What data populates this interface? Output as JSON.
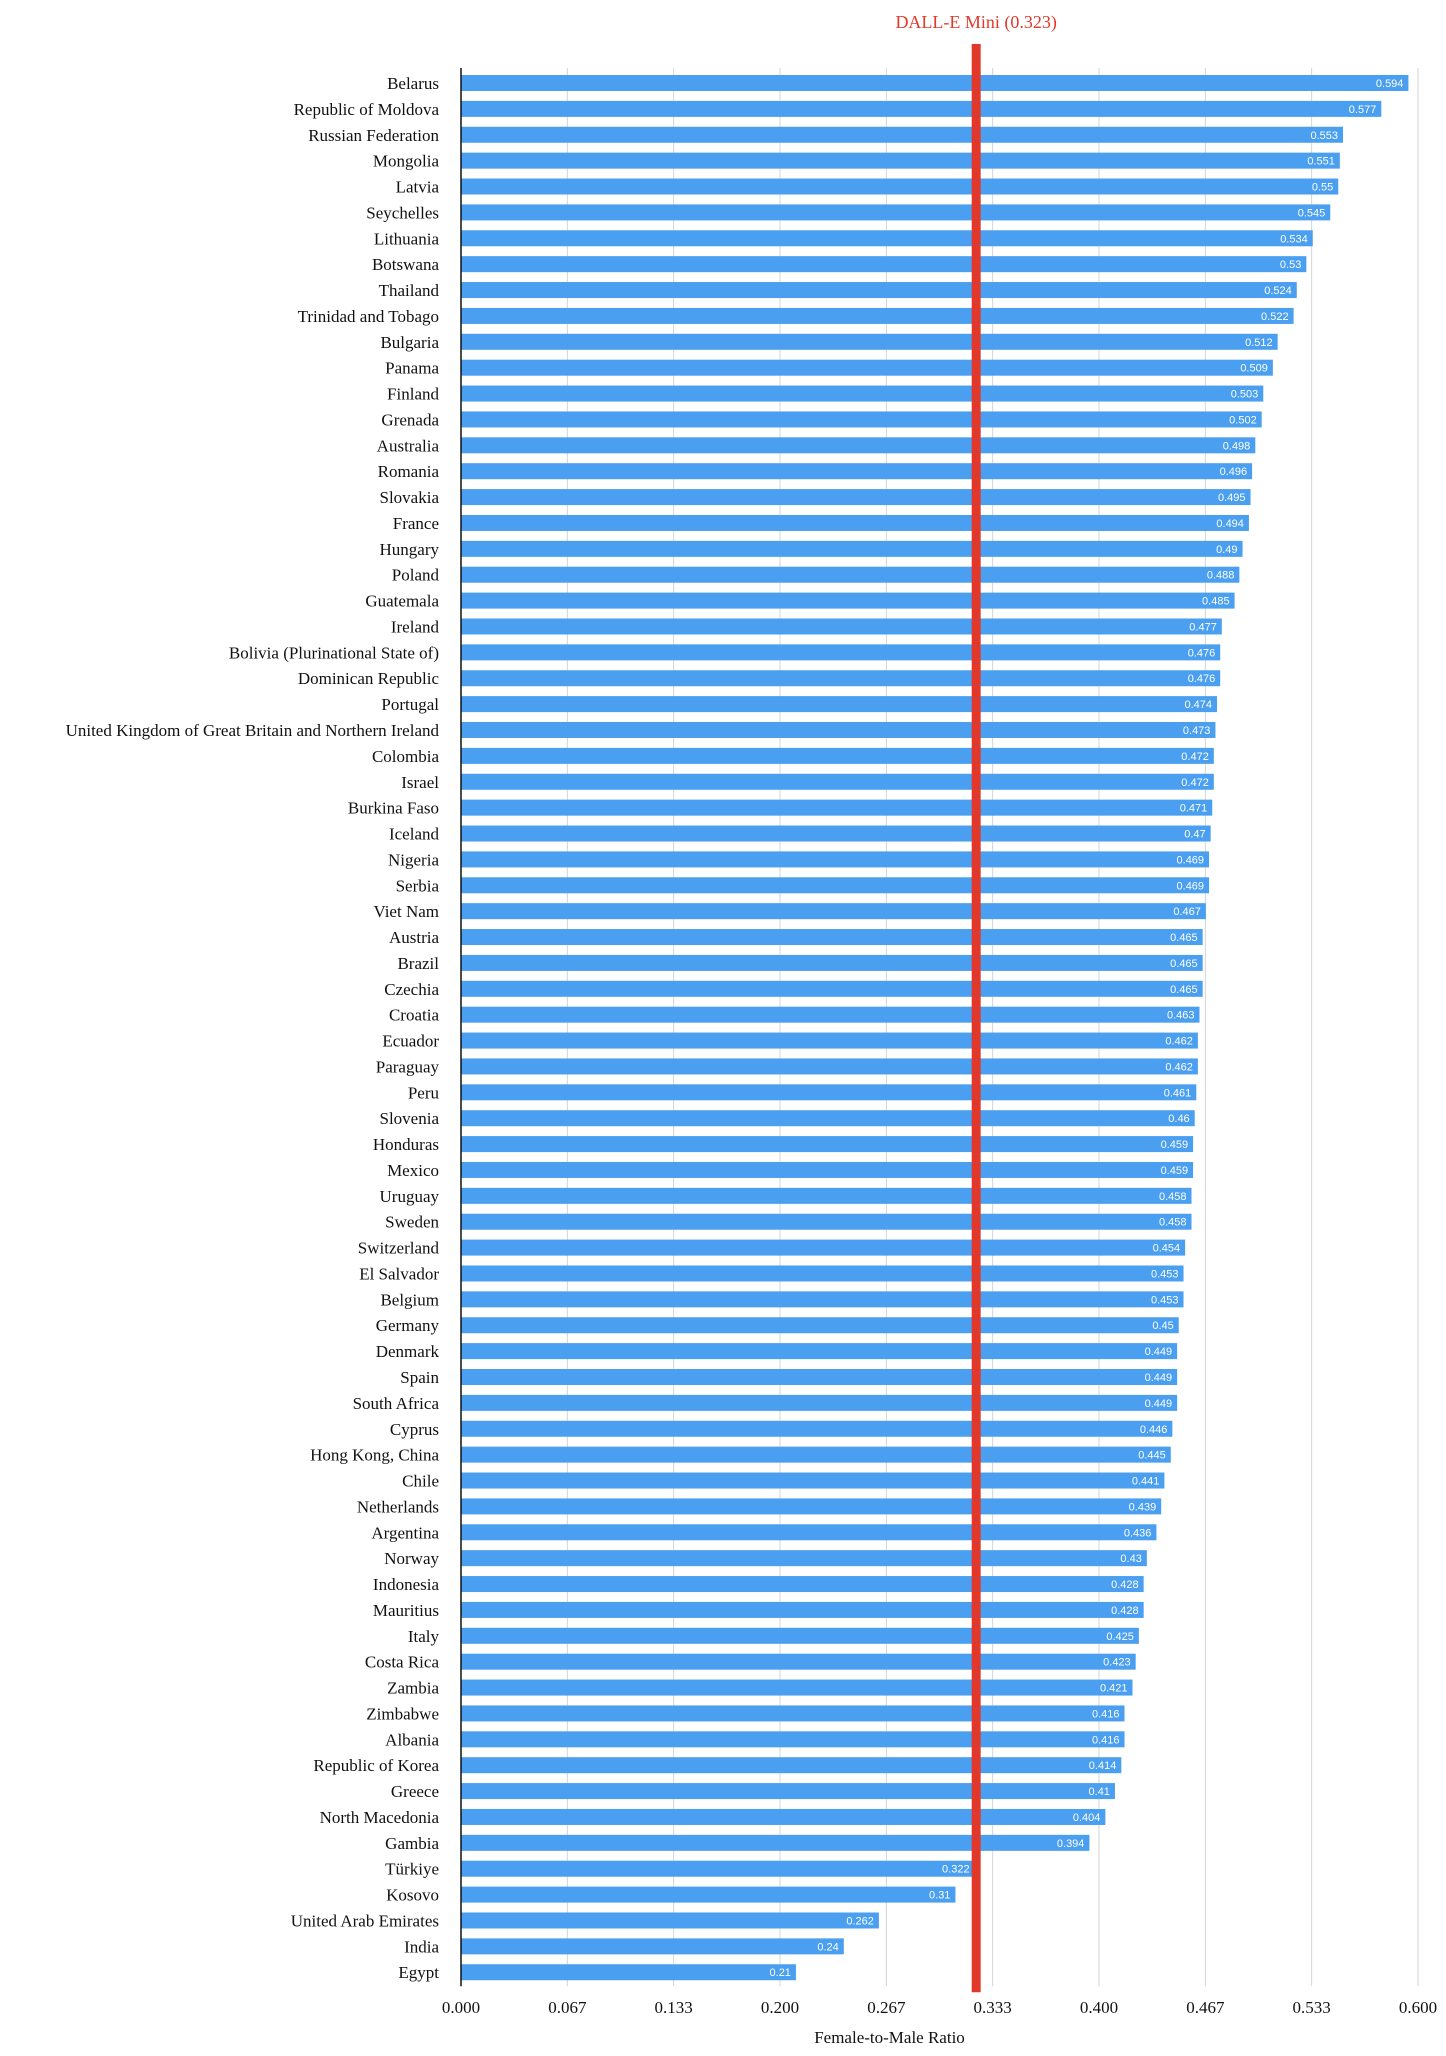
{
  "chart_data": {
    "type": "bar",
    "orientation": "horizontal",
    "categories": [
      "Belarus",
      "Republic of Moldova",
      "Russian Federation",
      "Mongolia",
      "Latvia",
      "Seychelles",
      "Lithuania",
      "Botswana",
      "Thailand",
      "Trinidad and Tobago",
      "Bulgaria",
      "Panama",
      "Finland",
      "Grenada",
      "Australia",
      "Romania",
      "Slovakia",
      "France",
      "Hungary",
      "Poland",
      "Guatemala",
      "Ireland",
      "Bolivia (Plurinational State of)",
      "Dominican Republic",
      "Portugal",
      "United Kingdom of Great Britain and Northern Ireland",
      "Colombia",
      "Israel",
      "Burkina Faso",
      "Iceland",
      "Nigeria",
      "Serbia",
      "Viet Nam",
      "Austria",
      "Brazil",
      "Czechia",
      "Croatia",
      "Ecuador",
      "Paraguay",
      "Peru",
      "Slovenia",
      "Honduras",
      "Mexico",
      "Uruguay",
      "Sweden",
      "Switzerland",
      "El Salvador",
      "Belgium",
      "Germany",
      "Denmark",
      "Spain",
      "South Africa",
      "Cyprus",
      "Hong Kong, China",
      "Chile",
      "Netherlands",
      "Argentina",
      "Norway",
      "Indonesia",
      "Mauritius",
      "Italy",
      "Costa Rica",
      "Zambia",
      "Zimbabwe",
      "Albania",
      "Republic of Korea",
      "Greece",
      "North Macedonia",
      "Gambia",
      "Türkiye",
      "Kosovo",
      "United Arab Emirates",
      "India",
      "Egypt"
    ],
    "values": [
      0.594,
      0.577,
      0.553,
      0.551,
      0.55,
      0.545,
      0.534,
      0.53,
      0.524,
      0.522,
      0.512,
      0.509,
      0.503,
      0.502,
      0.498,
      0.496,
      0.495,
      0.494,
      0.49,
      0.488,
      0.485,
      0.477,
      0.476,
      0.476,
      0.474,
      0.473,
      0.472,
      0.472,
      0.471,
      0.47,
      0.469,
      0.469,
      0.467,
      0.465,
      0.465,
      0.465,
      0.463,
      0.462,
      0.462,
      0.461,
      0.46,
      0.459,
      0.459,
      0.458,
      0.458,
      0.454,
      0.453,
      0.453,
      0.45,
      0.449,
      0.449,
      0.449,
      0.446,
      0.445,
      0.441,
      0.439,
      0.436,
      0.43,
      0.428,
      0.428,
      0.425,
      0.423,
      0.421,
      0.416,
      0.416,
      0.414,
      0.41,
      0.404,
      0.394,
      0.322,
      0.31,
      0.262,
      0.24,
      0.21
    ],
    "value_labels": [
      "0.594",
      "0.577",
      "0.553",
      "0.551",
      "0.55",
      "0.545",
      "0.534",
      "0.53",
      "0.524",
      "0.522",
      "0.512",
      "0.509",
      "0.503",
      "0.502",
      "0.498",
      "0.496",
      "0.495",
      "0.494",
      "0.49",
      "0.488",
      "0.485",
      "0.477",
      "0.476",
      "0.476",
      "0.474",
      "0.473",
      "0.472",
      "0.472",
      "0.471",
      "0.47",
      "0.469",
      "0.469",
      "0.467",
      "0.465",
      "0.465",
      "0.465",
      "0.463",
      "0.462",
      "0.462",
      "0.461",
      "0.46",
      "0.459",
      "0.459",
      "0.458",
      "0.458",
      "0.454",
      "0.453",
      "0.453",
      "0.45",
      "0.449",
      "0.449",
      "0.449",
      "0.446",
      "0.445",
      "0.441",
      "0.439",
      "0.436",
      "0.43",
      "0.428",
      "0.428",
      "0.425",
      "0.423",
      "0.421",
      "0.416",
      "0.416",
      "0.414",
      "0.41",
      "0.404",
      "0.394",
      "0.322",
      "0.31",
      "0.262",
      "0.24",
      "0.21"
    ],
    "xlabel": "Female-to-Male Ratio",
    "xlim": [
      0,
      0.6
    ],
    "xticks": [
      0,
      0.0667,
      0.1333,
      0.2,
      0.2667,
      0.3333,
      0.4,
      0.4667,
      0.5333,
      0.6
    ],
    "xtick_labels": [
      "0.000",
      "0.067",
      "0.133",
      "0.200",
      "0.267",
      "0.333",
      "0.400",
      "0.467",
      "0.533",
      "0.600"
    ],
    "grid": true,
    "bar_color": "#4a9ff0",
    "reference_line": {
      "label": "DALL-E Mini (0.323)",
      "value": 0.323,
      "color": "#e0392b"
    }
  }
}
